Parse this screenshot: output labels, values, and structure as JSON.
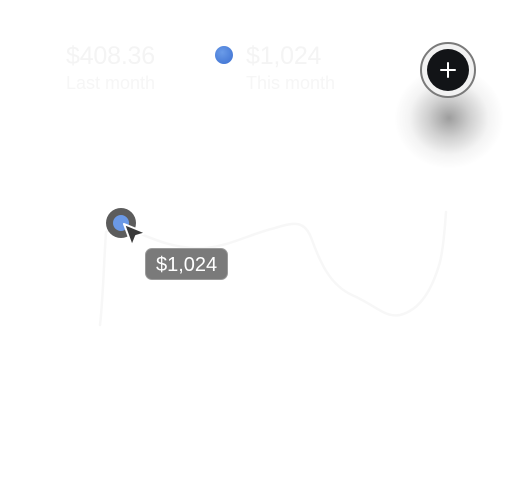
{
  "summary": {
    "last_month": {
      "value": "$408.36",
      "label": "Last month"
    },
    "this_month": {
      "value": "$1,024",
      "label": "This month"
    }
  },
  "legend": {
    "this_month_color": "#4a7fdc"
  },
  "add_button": {
    "icon": "plus-icon",
    "color": "#121417"
  },
  "tooltip": {
    "text": "$1,024"
  },
  "marker": {
    "color": "#6b99e6"
  },
  "icons": {
    "cursor": "cursor-arrow-icon"
  }
}
